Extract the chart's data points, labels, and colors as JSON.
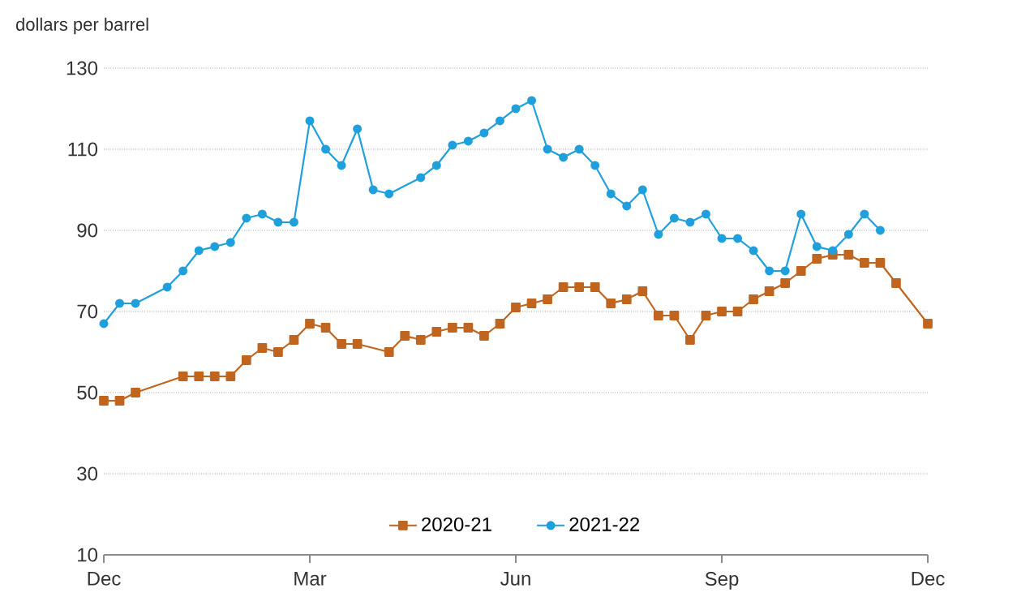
{
  "chart_data": {
    "type": "line",
    "ylabel": "dollars per barrel",
    "categories": [
      "Dec",
      null,
      null,
      null,
      null,
      null,
      null,
      null,
      null,
      null,
      null,
      null,
      null,
      "Mar",
      null,
      null,
      null,
      null,
      null,
      null,
      null,
      null,
      null,
      null,
      null,
      null,
      "Jun",
      null,
      null,
      null,
      null,
      null,
      null,
      null,
      null,
      null,
      null,
      null,
      null,
      "Sep",
      null,
      null,
      null,
      null,
      null,
      null,
      null,
      null,
      null,
      null,
      null,
      null,
      "Dec"
    ],
    "ylim": [
      10,
      130
    ],
    "yticks": [
      10,
      30,
      50,
      70,
      90,
      110,
      130
    ],
    "grid": "y",
    "legend": "bottom",
    "series": [
      {
        "name": "2020-21",
        "color": "#c0651f",
        "marker": "square",
        "values": [
          48,
          48,
          50,
          null,
          null,
          54,
          54,
          54,
          54,
          58,
          61,
          60,
          63,
          67,
          66,
          62,
          62,
          null,
          60,
          64,
          63,
          65,
          66,
          66,
          64,
          67,
          71,
          72,
          73,
          76,
          76,
          76,
          72,
          73,
          75,
          69,
          69,
          63,
          69,
          70,
          70,
          73,
          75,
          77,
          80,
          83,
          84,
          84,
          82,
          82,
          77,
          null,
          67
        ]
      },
      {
        "name": "2021-22",
        "color": "#1fa0dd",
        "marker": "circle",
        "values": [
          67,
          72,
          72,
          null,
          76,
          80,
          85,
          86,
          87,
          93,
          94,
          92,
          92,
          117,
          110,
          106,
          115,
          100,
          99,
          null,
          103,
          106,
          111,
          112,
          114,
          117,
          120,
          122,
          110,
          108,
          110,
          106,
          99,
          96,
          100,
          89,
          93,
          92,
          94,
          88,
          88,
          85,
          80,
          80,
          94,
          86,
          85,
          89,
          94,
          90,
          null,
          null,
          null
        ]
      }
    ]
  }
}
